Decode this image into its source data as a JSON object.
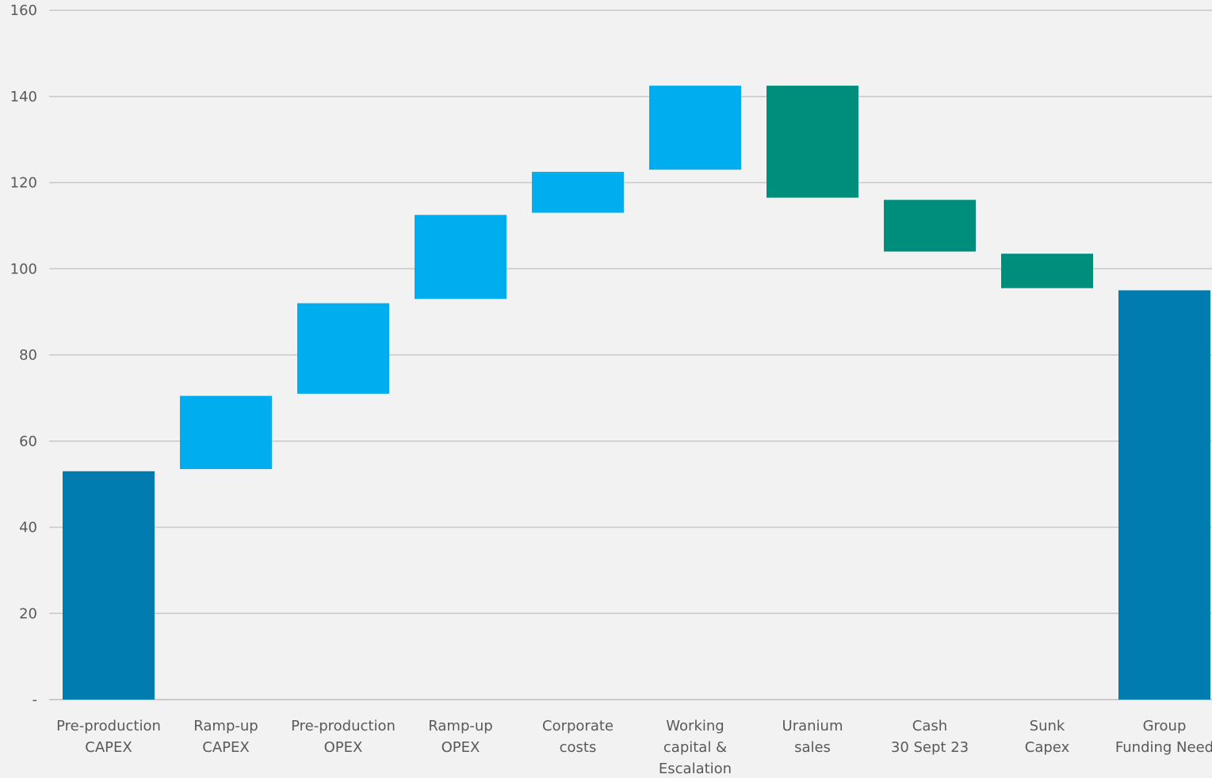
{
  "chart_data": {
    "type": "bar",
    "subtype": "waterfall",
    "title": "",
    "xlabel": "",
    "ylabel": "",
    "ylim": [
      0,
      160
    ],
    "yticks": [
      0,
      20,
      40,
      60,
      80,
      100,
      120,
      140,
      160
    ],
    "ytick_labels": [
      "-",
      "20",
      "40",
      "60",
      "80",
      "100",
      "120",
      "140",
      "160"
    ],
    "grid": true,
    "legend": "none",
    "colors": {
      "total": "#007cb0",
      "increase": "#00aeef",
      "decrease": "#008e7c"
    },
    "bars": [
      {
        "label_lines": [
          "Pre-production",
          "CAPEX"
        ],
        "kind": "total",
        "start": 0,
        "end": 53
      },
      {
        "label_lines": [
          "Ramp-up",
          "CAPEX"
        ],
        "kind": "increase",
        "start": 53.5,
        "end": 70.5
      },
      {
        "label_lines": [
          "Pre-production",
          "OPEX"
        ],
        "kind": "increase",
        "start": 71,
        "end": 92
      },
      {
        "label_lines": [
          "Ramp-up",
          "OPEX"
        ],
        "kind": "increase",
        "start": 93,
        "end": 112.5
      },
      {
        "label_lines": [
          "Corporate",
          "costs"
        ],
        "kind": "increase",
        "start": 113,
        "end": 122.5
      },
      {
        "label_lines": [
          "Working",
          "capital &",
          "Escalation"
        ],
        "kind": "increase",
        "start": 123,
        "end": 142.5
      },
      {
        "label_lines": [
          "Uranium",
          "sales"
        ],
        "kind": "decrease",
        "start": 142.5,
        "end": 116.5
      },
      {
        "label_lines": [
          "Cash",
          "30 Sept 23"
        ],
        "kind": "decrease",
        "start": 116,
        "end": 104
      },
      {
        "label_lines": [
          "Sunk",
          "Capex"
        ],
        "kind": "decrease",
        "start": 103.5,
        "end": 95.5
      },
      {
        "label_lines": [
          "Group",
          "Funding Need"
        ],
        "kind": "total",
        "start": 0,
        "end": 95
      }
    ]
  }
}
